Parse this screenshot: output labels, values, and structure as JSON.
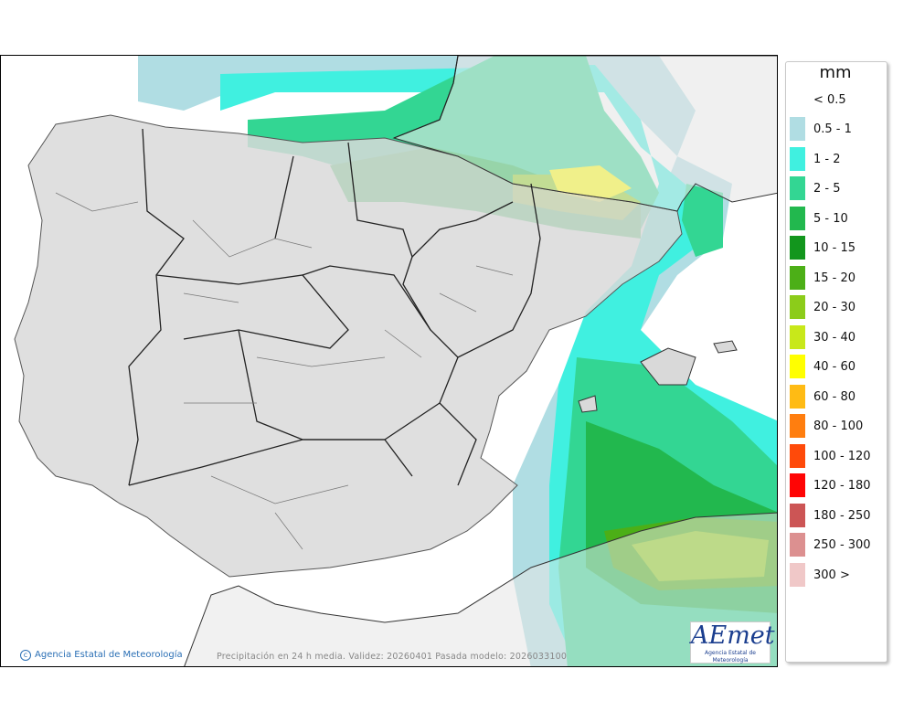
{
  "map": {
    "caption": "Precipitación en 24 h media. Validez: 20260401 Pasada modelo: 2026033100",
    "credit": "Agencia Estatal de Meteorología",
    "logo": {
      "word": "AEmet",
      "sub": "Agencia Estatal de Meteorología"
    }
  },
  "legend": {
    "unit": "mm",
    "items": [
      {
        "label": "< 0.5",
        "color": "#ffffff"
      },
      {
        "label": "0.5 - 1",
        "color": "#b0dde3"
      },
      {
        "label": "1 - 2",
        "color": "#40f0e0"
      },
      {
        "label": "2 - 5",
        "color": "#33d693"
      },
      {
        "label": "5 - 10",
        "color": "#22b84e"
      },
      {
        "label": "10 - 15",
        "color": "#12961d"
      },
      {
        "label": "15 - 20",
        "color": "#4caf17"
      },
      {
        "label": "20 - 30",
        "color": "#8ccc1a"
      },
      {
        "label": "30 - 40",
        "color": "#c8e81a"
      },
      {
        "label": "40 - 60",
        "color": "#ffff00"
      },
      {
        "label": "60 - 80",
        "color": "#ffbb14"
      },
      {
        "label": "80 - 100",
        "color": "#ff7e0f"
      },
      {
        "label": "100 - 120",
        "color": "#ff4a0a"
      },
      {
        "label": "120 - 180",
        "color": "#ff0505"
      },
      {
        "label": "180 - 250",
        "color": "#cc5555"
      },
      {
        "label": "250 - 300",
        "color": "#dc9090"
      },
      {
        "label": "300 >",
        "color": "#f0c8c8"
      }
    ]
  }
}
